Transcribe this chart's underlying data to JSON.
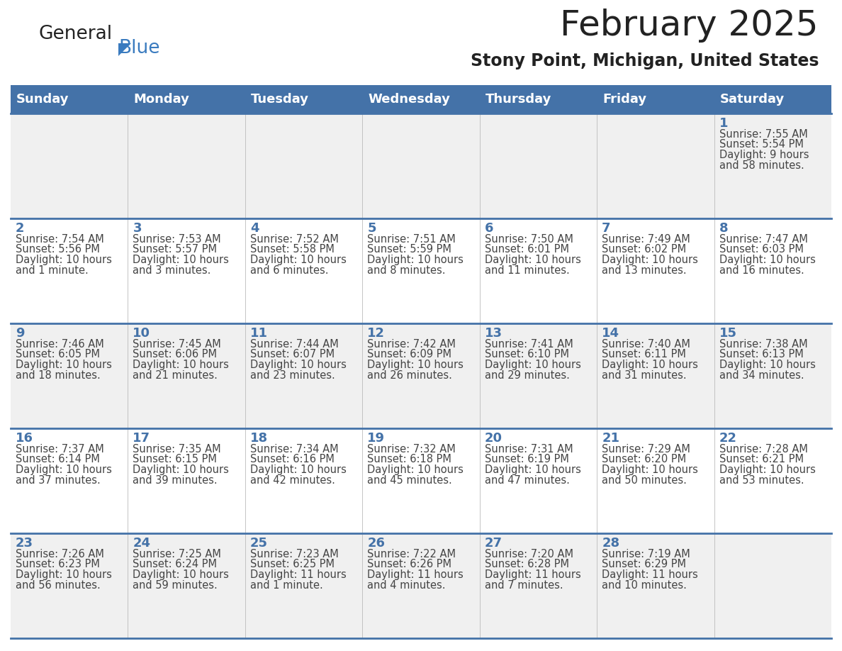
{
  "title": "February 2025",
  "subtitle": "Stony Point, Michigan, United States",
  "header_bg_color": "#4472a8",
  "header_text_color": "#ffffff",
  "day_names": [
    "Sunday",
    "Monday",
    "Tuesday",
    "Wednesday",
    "Thursday",
    "Friday",
    "Saturday"
  ],
  "row1_bg": "#f0f0f0",
  "row2_bg": "#ffffff",
  "cell_border_color": "#4472a8",
  "day_number_color": "#4472a8",
  "info_text_color": "#444444",
  "calendar_data": [
    [
      null,
      null,
      null,
      null,
      null,
      null,
      {
        "day": 1,
        "sunrise": "7:55 AM",
        "sunset": "5:54 PM",
        "daylight_line1": "Daylight: 9 hours",
        "daylight_line2": "and 58 minutes."
      }
    ],
    [
      {
        "day": 2,
        "sunrise": "7:54 AM",
        "sunset": "5:56 PM",
        "daylight_line1": "Daylight: 10 hours",
        "daylight_line2": "and 1 minute."
      },
      {
        "day": 3,
        "sunrise": "7:53 AM",
        "sunset": "5:57 PM",
        "daylight_line1": "Daylight: 10 hours",
        "daylight_line2": "and 3 minutes."
      },
      {
        "day": 4,
        "sunrise": "7:52 AM",
        "sunset": "5:58 PM",
        "daylight_line1": "Daylight: 10 hours",
        "daylight_line2": "and 6 minutes."
      },
      {
        "day": 5,
        "sunrise": "7:51 AM",
        "sunset": "5:59 PM",
        "daylight_line1": "Daylight: 10 hours",
        "daylight_line2": "and 8 minutes."
      },
      {
        "day": 6,
        "sunrise": "7:50 AM",
        "sunset": "6:01 PM",
        "daylight_line1": "Daylight: 10 hours",
        "daylight_line2": "and 11 minutes."
      },
      {
        "day": 7,
        "sunrise": "7:49 AM",
        "sunset": "6:02 PM",
        "daylight_line1": "Daylight: 10 hours",
        "daylight_line2": "and 13 minutes."
      },
      {
        "day": 8,
        "sunrise": "7:47 AM",
        "sunset": "6:03 PM",
        "daylight_line1": "Daylight: 10 hours",
        "daylight_line2": "and 16 minutes."
      }
    ],
    [
      {
        "day": 9,
        "sunrise": "7:46 AM",
        "sunset": "6:05 PM",
        "daylight_line1": "Daylight: 10 hours",
        "daylight_line2": "and 18 minutes."
      },
      {
        "day": 10,
        "sunrise": "7:45 AM",
        "sunset": "6:06 PM",
        "daylight_line1": "Daylight: 10 hours",
        "daylight_line2": "and 21 minutes."
      },
      {
        "day": 11,
        "sunrise": "7:44 AM",
        "sunset": "6:07 PM",
        "daylight_line1": "Daylight: 10 hours",
        "daylight_line2": "and 23 minutes."
      },
      {
        "day": 12,
        "sunrise": "7:42 AM",
        "sunset": "6:09 PM",
        "daylight_line1": "Daylight: 10 hours",
        "daylight_line2": "and 26 minutes."
      },
      {
        "day": 13,
        "sunrise": "7:41 AM",
        "sunset": "6:10 PM",
        "daylight_line1": "Daylight: 10 hours",
        "daylight_line2": "and 29 minutes."
      },
      {
        "day": 14,
        "sunrise": "7:40 AM",
        "sunset": "6:11 PM",
        "daylight_line1": "Daylight: 10 hours",
        "daylight_line2": "and 31 minutes."
      },
      {
        "day": 15,
        "sunrise": "7:38 AM",
        "sunset": "6:13 PM",
        "daylight_line1": "Daylight: 10 hours",
        "daylight_line2": "and 34 minutes."
      }
    ],
    [
      {
        "day": 16,
        "sunrise": "7:37 AM",
        "sunset": "6:14 PM",
        "daylight_line1": "Daylight: 10 hours",
        "daylight_line2": "and 37 minutes."
      },
      {
        "day": 17,
        "sunrise": "7:35 AM",
        "sunset": "6:15 PM",
        "daylight_line1": "Daylight: 10 hours",
        "daylight_line2": "and 39 minutes."
      },
      {
        "day": 18,
        "sunrise": "7:34 AM",
        "sunset": "6:16 PM",
        "daylight_line1": "Daylight: 10 hours",
        "daylight_line2": "and 42 minutes."
      },
      {
        "day": 19,
        "sunrise": "7:32 AM",
        "sunset": "6:18 PM",
        "daylight_line1": "Daylight: 10 hours",
        "daylight_line2": "and 45 minutes."
      },
      {
        "day": 20,
        "sunrise": "7:31 AM",
        "sunset": "6:19 PM",
        "daylight_line1": "Daylight: 10 hours",
        "daylight_line2": "and 47 minutes."
      },
      {
        "day": 21,
        "sunrise": "7:29 AM",
        "sunset": "6:20 PM",
        "daylight_line1": "Daylight: 10 hours",
        "daylight_line2": "and 50 minutes."
      },
      {
        "day": 22,
        "sunrise": "7:28 AM",
        "sunset": "6:21 PM",
        "daylight_line1": "Daylight: 10 hours",
        "daylight_line2": "and 53 minutes."
      }
    ],
    [
      {
        "day": 23,
        "sunrise": "7:26 AM",
        "sunset": "6:23 PM",
        "daylight_line1": "Daylight: 10 hours",
        "daylight_line2": "and 56 minutes."
      },
      {
        "day": 24,
        "sunrise": "7:25 AM",
        "sunset": "6:24 PM",
        "daylight_line1": "Daylight: 10 hours",
        "daylight_line2": "and 59 minutes."
      },
      {
        "day": 25,
        "sunrise": "7:23 AM",
        "sunset": "6:25 PM",
        "daylight_line1": "Daylight: 11 hours",
        "daylight_line2": "and 1 minute."
      },
      {
        "day": 26,
        "sunrise": "7:22 AM",
        "sunset": "6:26 PM",
        "daylight_line1": "Daylight: 11 hours",
        "daylight_line2": "and 4 minutes."
      },
      {
        "day": 27,
        "sunrise": "7:20 AM",
        "sunset": "6:28 PM",
        "daylight_line1": "Daylight: 11 hours",
        "daylight_line2": "and 7 minutes."
      },
      {
        "day": 28,
        "sunrise": "7:19 AM",
        "sunset": "6:29 PM",
        "daylight_line1": "Daylight: 11 hours",
        "daylight_line2": "and 10 minutes."
      },
      null
    ]
  ],
  "figsize": [
    11.88,
    9.18
  ],
  "dpi": 100
}
